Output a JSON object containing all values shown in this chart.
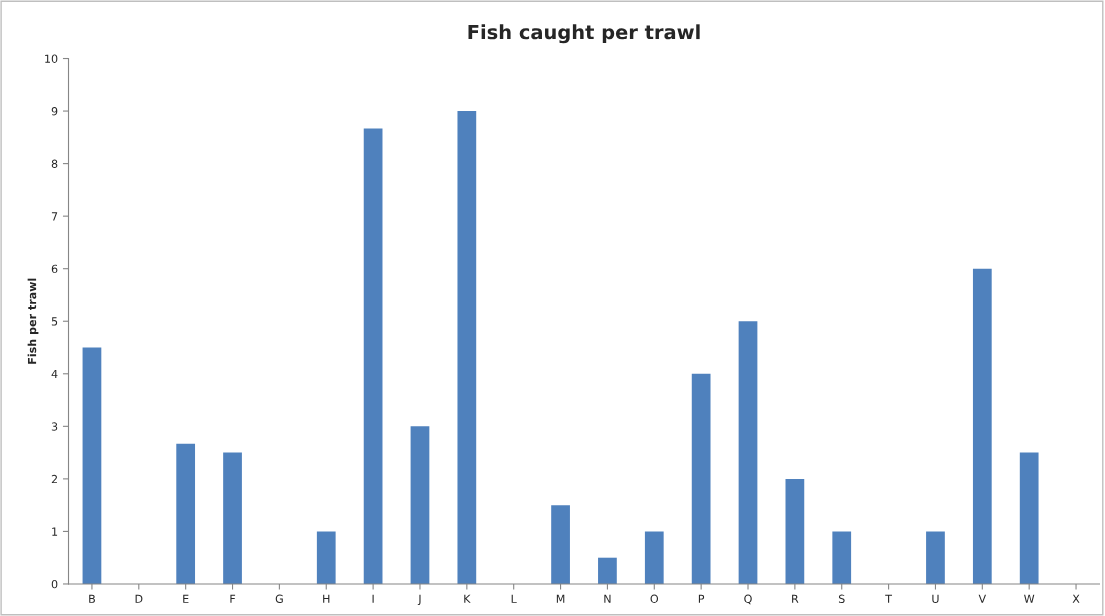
{
  "chart_data": {
    "type": "bar",
    "title": "Fish caught per trawl",
    "ylabel": "Fish per trawl",
    "categories": [
      "B",
      "D",
      "E",
      "F",
      "G",
      "H",
      "I",
      "J",
      "K",
      "L",
      "M",
      "N",
      "O",
      "P",
      "Q",
      "R",
      "S",
      "T",
      "U",
      "V",
      "W",
      "X"
    ],
    "values": [
      4.5,
      0,
      2.67,
      2.5,
      0,
      1,
      8.67,
      3,
      9,
      0,
      1.5,
      0.5,
      1,
      4,
      5,
      2,
      1,
      0,
      1,
      6,
      2.5,
      0
    ],
    "color": "#4f81bd",
    "ylim": [
      0,
      10
    ],
    "yticks": [
      0,
      1,
      2,
      3,
      4,
      5,
      6,
      7,
      8,
      9,
      10
    ],
    "grid": false,
    "legend": false
  }
}
